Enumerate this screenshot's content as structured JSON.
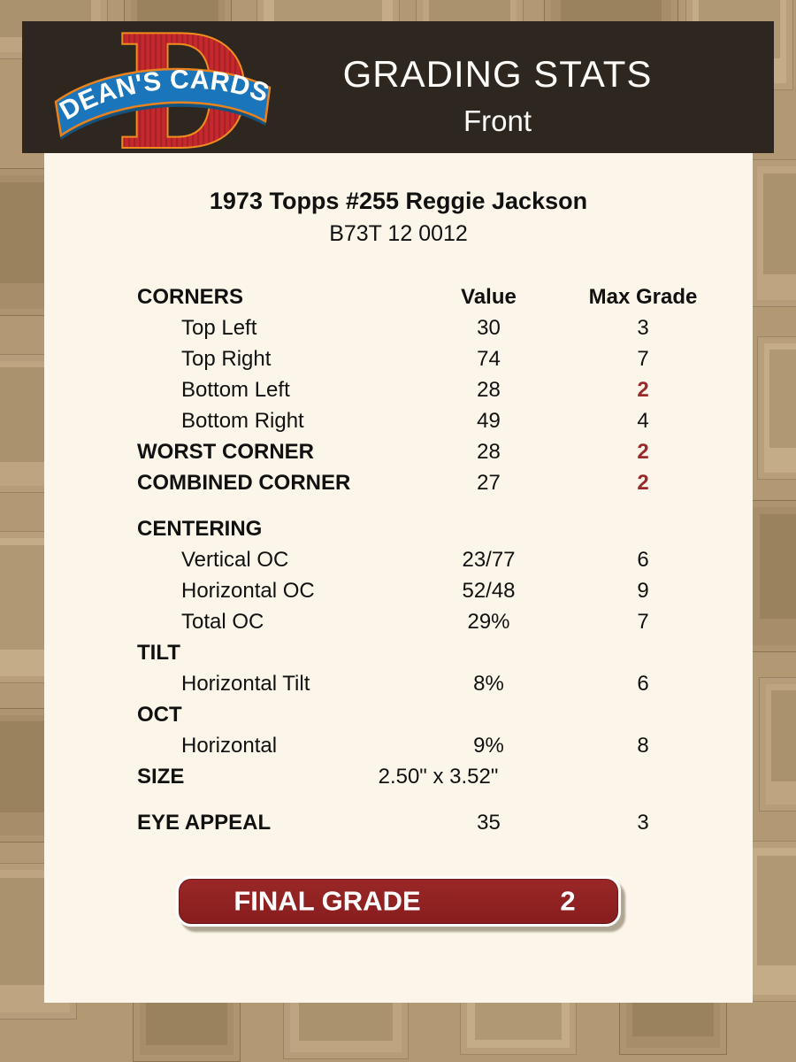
{
  "header": {
    "brand": "DEAN'S CARDS",
    "title": "GRADING STATS",
    "subtitle": "Front"
  },
  "card": {
    "title": "1973 Topps #255 Reggie Jackson",
    "serial": "B73T 12 0012"
  },
  "table": {
    "rows": [
      {
        "type": "header",
        "label": "CORNERS",
        "value": "Value",
        "max": "Max Grade"
      },
      {
        "label": "Top Left",
        "value": "30",
        "max": "3",
        "indent": true
      },
      {
        "label": "Top Right",
        "value": "74",
        "max": "7",
        "indent": true
      },
      {
        "label": "Bottom Left",
        "value": "28",
        "max": "2",
        "indent": true,
        "max_red": true
      },
      {
        "label": "Bottom Right",
        "value": "49",
        "max": "4",
        "indent": true
      },
      {
        "label": "WORST CORNER",
        "value": "28",
        "max": "2",
        "bold": true,
        "max_red": true
      },
      {
        "label": "COMBINED CORNER",
        "value": "27",
        "max": "2",
        "bold": true,
        "max_red": true
      },
      {
        "spacer": true
      },
      {
        "label": "CENTERING",
        "bold": true
      },
      {
        "label": "Vertical OC",
        "value": "23/77",
        "max": "6",
        "indent": true
      },
      {
        "label": "Horizontal OC",
        "value": "52/48",
        "max": "9",
        "indent": true
      },
      {
        "label": "Total OC",
        "value": "29%",
        "max": "7",
        "indent": true
      },
      {
        "label": "TILT",
        "bold": true
      },
      {
        "label": "Horizontal Tilt",
        "value": "8%",
        "max": "6",
        "indent": true
      },
      {
        "label": "OCT",
        "bold": true
      },
      {
        "label": "Horizontal",
        "value": "9%",
        "max": "8",
        "indent": true
      },
      {
        "label": "SIZE",
        "value": "2.50\" x 3.52\"",
        "bold": true,
        "value_wide": true
      },
      {
        "spacer": true
      },
      {
        "label": "EYE APPEAL",
        "value": "35",
        "max": "3",
        "bold": true
      }
    ]
  },
  "final_grade": {
    "label": "FINAL GRADE",
    "value": "2"
  },
  "colors": {
    "page_bg": "#b29873",
    "header_bg": "#2d2720",
    "panel_bg": "#fbf6e9",
    "accent_red": "#9a2a2a",
    "button_red": "#8f2222",
    "logo_d_red": "#c4292e",
    "logo_d_outline": "#f28c1e",
    "logo_ribbon_blue": "#1b75bb"
  }
}
